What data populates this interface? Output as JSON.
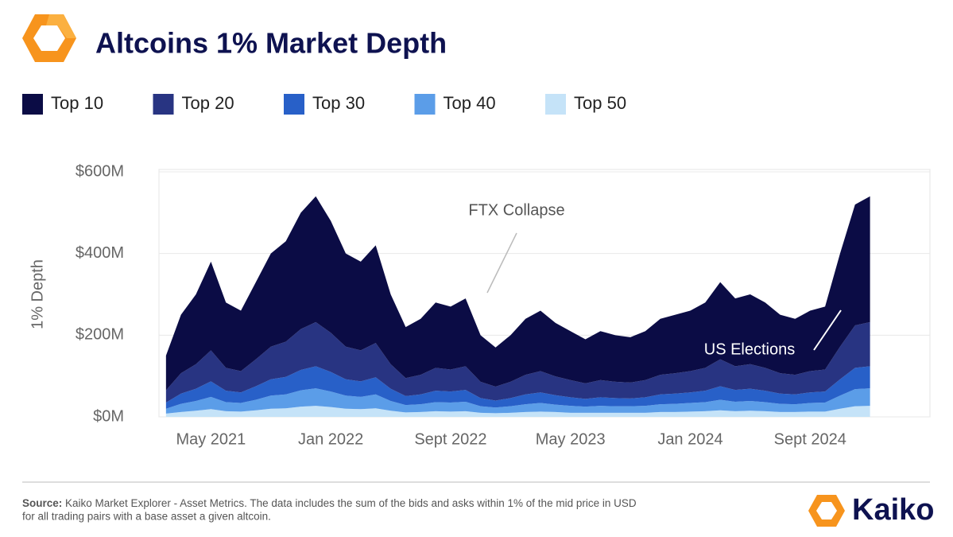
{
  "chart_data": {
    "type": "stacked_area",
    "title": "Altcoins 1% Market Depth",
    "y_label": "1% Depth",
    "x": [
      "2021-02",
      "2021-03",
      "2021-04",
      "2021-05",
      "2021-06",
      "2021-07",
      "2021-08",
      "2021-09",
      "2021-10",
      "2021-11",
      "2021-12",
      "2022-01",
      "2022-02",
      "2022-03",
      "2022-04",
      "2022-05",
      "2022-06",
      "2022-07",
      "2022-08",
      "2022-09",
      "2022-10",
      "2022-11",
      "2022-12",
      "2023-01",
      "2023-02",
      "2023-03",
      "2023-04",
      "2023-05",
      "2023-06",
      "2023-07",
      "2023-08",
      "2023-09",
      "2023-10",
      "2023-11",
      "2023-12",
      "2024-01",
      "2024-02",
      "2024-03",
      "2024-04",
      "2024-05",
      "2024-06",
      "2024-07",
      "2024-08",
      "2024-09",
      "2024-10",
      "2024-11",
      "2024-12",
      "2025-01"
    ],
    "series": [
      {
        "name": "Top 10",
        "color": "#0b0c45",
        "values": [
          85,
          143,
          171,
          217,
          160,
          148,
          189,
          228,
          246,
          285,
          308,
          274,
          228,
          217,
          239,
          171,
          125,
          137,
          160,
          154,
          166,
          114,
          96,
          114,
          137,
          148,
          131,
          120,
          108,
          120,
          114,
          111,
          120,
          137,
          143,
          148,
          160,
          189,
          166,
          171,
          160,
          143,
          137,
          148,
          154,
          228,
          296,
          308
        ]
      },
      {
        "name": "Top 20",
        "color": "#283482",
        "values": [
          30,
          50,
          60,
          76,
          56,
          52,
          66,
          80,
          86,
          100,
          108,
          96,
          80,
          76,
          84,
          60,
          44,
          48,
          56,
          54,
          58,
          40,
          34,
          40,
          48,
          52,
          46,
          42,
          38,
          42,
          40,
          39,
          42,
          48,
          50,
          52,
          56,
          66,
          58,
          60,
          56,
          50,
          48,
          52,
          54,
          80,
          104,
          108
        ]
      },
      {
        "name": "Top 30",
        "color": "#2860c8",
        "values": [
          15,
          25,
          30,
          38,
          28,
          26,
          33,
          40,
          43,
          50,
          54,
          48,
          40,
          38,
          42,
          30,
          22,
          24,
          28,
          27,
          29,
          20,
          17,
          20,
          24,
          26,
          23,
          21,
          19,
          21,
          20,
          19,
          21,
          24,
          25,
          26,
          28,
          33,
          29,
          30,
          28,
          25,
          24,
          26,
          27,
          40,
          52,
          54
        ]
      },
      {
        "name": "Top 40",
        "color": "#5b9de8",
        "values": [
          12,
          20,
          24,
          30,
          22,
          21,
          26,
          32,
          34,
          40,
          43,
          38,
          32,
          30,
          34,
          24,
          18,
          19,
          22,
          22,
          23,
          16,
          14,
          16,
          19,
          21,
          18,
          17,
          15,
          17,
          16,
          16,
          17,
          19,
          20,
          21,
          22,
          26,
          23,
          24,
          22,
          20,
          19,
          21,
          22,
          32,
          42,
          43
        ]
      },
      {
        "name": "Top 50",
        "color": "#c5e3f8",
        "values": [
          8,
          12,
          15,
          19,
          14,
          13,
          16,
          20,
          21,
          25,
          27,
          24,
          20,
          19,
          21,
          15,
          11,
          12,
          14,
          13,
          14,
          10,
          9,
          10,
          12,
          13,
          12,
          10,
          10,
          10,
          10,
          10,
          10,
          12,
          12,
          13,
          14,
          16,
          14,
          15,
          14,
          12,
          12,
          13,
          13,
          20,
          26,
          27
        ]
      }
    ],
    "xlim": [
      "2021-01",
      "2025-05"
    ],
    "xticks": [
      {
        "value": "2021-05",
        "label": "May 2021"
      },
      {
        "value": "2022-01",
        "label": "Jan 2022"
      },
      {
        "value": "2022-09",
        "label": "Sept 2022"
      },
      {
        "value": "2023-05",
        "label": "May 2023"
      },
      {
        "value": "2024-01",
        "label": "Jan 2024"
      },
      {
        "value": "2024-09",
        "label": "Sept 2024"
      }
    ],
    "ylim": [
      0,
      600
    ],
    "yticks": [
      {
        "value": 0,
        "label": "$0M"
      },
      {
        "value": 200,
        "label": "$200M"
      },
      {
        "value": 400,
        "label": "$400M"
      },
      {
        "value": 600,
        "label": "$600M"
      }
    ],
    "grid": true,
    "annotations": [
      "FTX Collapse",
      "US Elections"
    ],
    "source_label": "Source:",
    "source_lines": [
      "Kaiko Market Explorer - Asset Metrics. The data includes the sum of the bids and asks within 1% of the mid price in USD",
      "for all trading pairs with a base asset  a given altcoin."
    ],
    "brand": "Kaiko"
  }
}
